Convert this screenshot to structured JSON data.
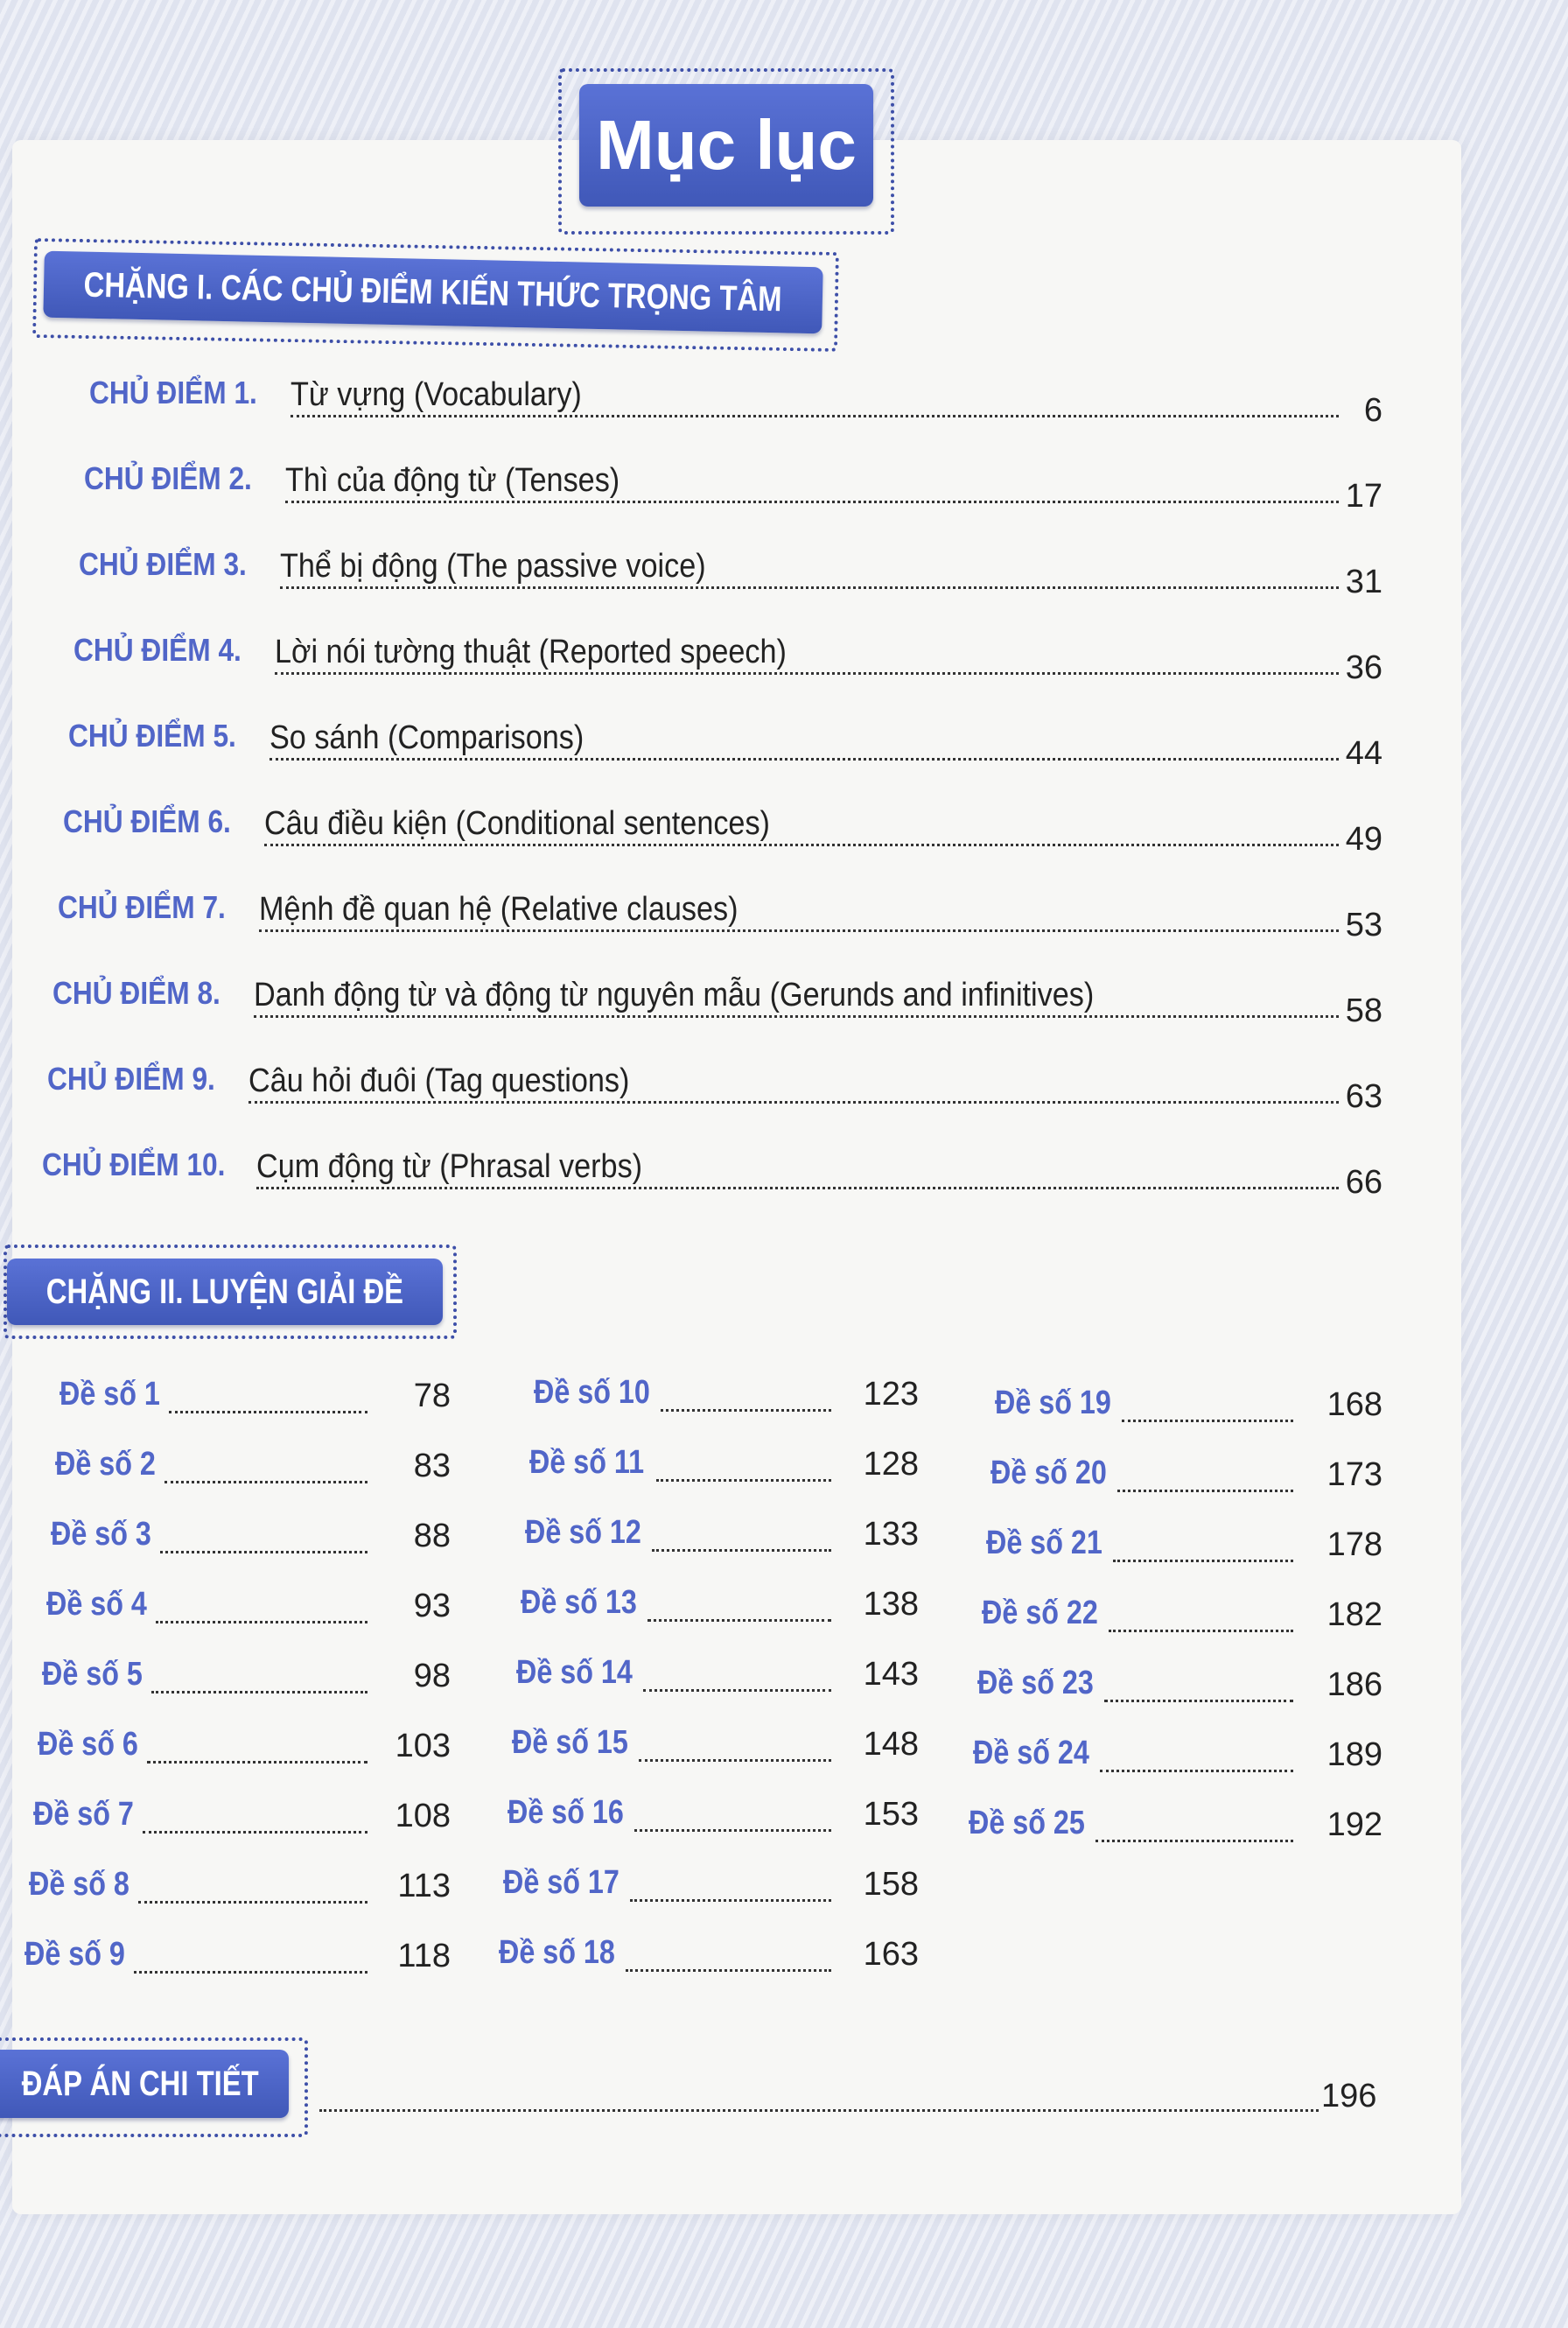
{
  "title": "Mục lục",
  "section1": {
    "heading": "CHẶNG I. CÁC CHỦ ĐIỂM KIẾN THỨC TRỌNG TÂM",
    "topics": [
      {
        "label": "CHỦ ĐIỂM 1.",
        "text": "Từ vựng (Vocabulary)",
        "page": "6"
      },
      {
        "label": "CHỦ ĐIỂM 2.",
        "text": "Thì của động từ (Tenses)",
        "page": "17"
      },
      {
        "label": "CHỦ ĐIỂM 3.",
        "text": "Thể bị động (The passive voice)",
        "page": "31"
      },
      {
        "label": "CHỦ ĐIỂM 4.",
        "text": "Lời nói tường thuật (Reported speech)",
        "page": "36"
      },
      {
        "label": "CHỦ ĐIỂM 5.",
        "text": "So sánh (Comparisons)",
        "page": "44"
      },
      {
        "label": "CHỦ ĐIỂM 6.",
        "text": "Câu điều kiện (Conditional sentences)",
        "page": "49"
      },
      {
        "label": "CHỦ ĐIỂM 7.",
        "text": "Mệnh đề quan hệ (Relative clauses)",
        "page": "53"
      },
      {
        "label": "CHỦ ĐIỂM 8.",
        "text": "Danh động từ và động từ nguyên mẫu (Gerunds and infinitives)",
        "page": "58"
      },
      {
        "label": "CHỦ ĐIỂM 9.",
        "text": "Câu hỏi đuôi (Tag questions)",
        "page": "63"
      },
      {
        "label": "CHỦ ĐIỂM 10.",
        "text": "Cụm động từ (Phrasal verbs)",
        "page": "66"
      }
    ]
  },
  "section2": {
    "heading": "CHẶNG II. LUYỆN GIẢI ĐỀ",
    "exams": [
      {
        "label": "Đề số 1",
        "page": "78"
      },
      {
        "label": "Đề số 2",
        "page": "83"
      },
      {
        "label": "Đề số 3",
        "page": "88"
      },
      {
        "label": "Đề số 4",
        "page": "93"
      },
      {
        "label": "Đề số 5",
        "page": "98"
      },
      {
        "label": "Đề số 6",
        "page": "103"
      },
      {
        "label": "Đề số 7",
        "page": "108"
      },
      {
        "label": "Đề số 8",
        "page": "113"
      },
      {
        "label": "Đề số 9",
        "page": "118"
      },
      {
        "label": "Đề số 10",
        "page": "123"
      },
      {
        "label": "Đề số 11",
        "page": "128"
      },
      {
        "label": "Đề số 12",
        "page": "133"
      },
      {
        "label": "Đề số 13",
        "page": "138"
      },
      {
        "label": "Đề số 14",
        "page": "143"
      },
      {
        "label": "Đề số 15",
        "page": "148"
      },
      {
        "label": "Đề số 16",
        "page": "153"
      },
      {
        "label": "Đề số 17",
        "page": "158"
      },
      {
        "label": "Đề số 18",
        "page": "163"
      },
      {
        "label": "Đề số 19",
        "page": "168"
      },
      {
        "label": "Đề số 20",
        "page": "173"
      },
      {
        "label": "Đề số 21",
        "page": "178"
      },
      {
        "label": "Đề số 22",
        "page": "182"
      },
      {
        "label": "Đề số 23",
        "page": "186"
      },
      {
        "label": "Đề số 24",
        "page": "189"
      },
      {
        "label": "Đề số 25",
        "page": "192"
      }
    ]
  },
  "answers": {
    "heading": "ĐÁP ÁN CHI TIẾT",
    "page": "196"
  },
  "colors": {
    "banner": "#4a63c4",
    "label": "#5166c8"
  }
}
